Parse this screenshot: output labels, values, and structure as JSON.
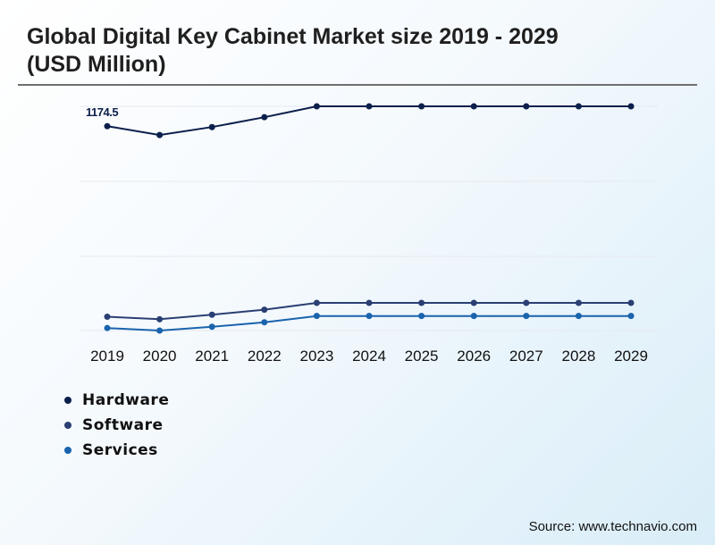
{
  "title": "Global Digital Key Cabinet Market size 2019 - 2029 (USD Million)",
  "source": "Source: www.technavio.com",
  "colors": {
    "hardware": "#0b1f4b",
    "software": "#2a3f73",
    "services": "#1a63ad"
  },
  "chart_data": {
    "type": "line",
    "title": "Global Digital Key Cabinet Market size 2019 - 2029 (USD Million)",
    "categories": [
      "2019",
      "2020",
      "2021",
      "2022",
      "2023",
      "2024",
      "2025",
      "2026",
      "2027",
      "2028",
      "2029"
    ],
    "series": [
      {
        "name": "Hardware",
        "color": "#0b1f4b",
        "values": [
          1174.5,
          1130,
          1170,
          1220,
          1275,
          1275,
          1275,
          1275,
          1275,
          1275,
          1275
        ]
      },
      {
        "name": "Software",
        "color": "#2a3f73",
        "values": [
          55,
          45,
          63,
          83,
          110,
          110,
          110,
          110,
          110,
          110,
          110
        ]
      },
      {
        "name": "Services",
        "color": "#1a63ad",
        "values": [
          10,
          0,
          15,
          33,
          58,
          58,
          58,
          58,
          58,
          58,
          58
        ]
      }
    ],
    "data_labels": [
      {
        "series": "Hardware",
        "category": "2019",
        "text": "1174.5"
      }
    ],
    "ylim": [
      0,
      1300
    ],
    "grid": true,
    "y_axis_labels": false,
    "legend_position": "bottom-left"
  }
}
